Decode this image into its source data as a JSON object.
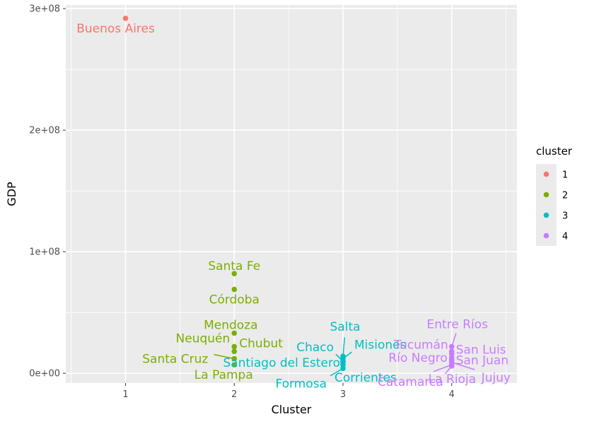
{
  "chart_data": {
    "type": "scatter",
    "xlabel": "Cluster",
    "ylabel": "GDP",
    "xlim": [
      0.45,
      4.6
    ],
    "ylim": [
      -8000000,
      303000000
    ],
    "x_ticks": [
      1,
      2,
      3,
      4
    ],
    "x_tick_labels": [
      "1",
      "2",
      "3",
      "4"
    ],
    "y_ticks": [
      0,
      100000000,
      200000000,
      300000000
    ],
    "y_tick_labels": [
      "0e+00",
      "1e+08",
      "2e+08",
      "3e+08"
    ],
    "grid": true,
    "legend": {
      "title": "cluster",
      "position": "right",
      "entries": [
        {
          "label": "1",
          "color": "#F8766D"
        },
        {
          "label": "2",
          "color": "#7CAE00"
        },
        {
          "label": "3",
          "color": "#00BFC4"
        },
        {
          "label": "4",
          "color": "#C77CFF"
        }
      ]
    },
    "series": [
      {
        "cluster": 1,
        "color": "#F8766D",
        "points": [
          {
            "label": "Buenos Aires",
            "x": 1,
            "y": 292000000
          }
        ]
      },
      {
        "cluster": 2,
        "color": "#7CAE00",
        "points": [
          {
            "label": "Santa Fe",
            "x": 2,
            "y": 82000000
          },
          {
            "label": "Córdoba",
            "x": 2,
            "y": 69000000
          },
          {
            "label": "Mendoza",
            "x": 2,
            "y": 33000000
          },
          {
            "label": "Neuquén",
            "x": 2,
            "y": 22000000
          },
          {
            "label": "Chubut",
            "x": 2,
            "y": 18000000
          },
          {
            "label": "Santa Cruz",
            "x": 2,
            "y": 12000000
          },
          {
            "label": "La Pampa",
            "x": 2,
            "y": 7000000
          }
        ]
      },
      {
        "cluster": 3,
        "color": "#00BFC4",
        "points": [
          {
            "label": "Salta",
            "x": 3,
            "y": 14000000
          },
          {
            "label": "Chaco",
            "x": 3,
            "y": 10000000
          },
          {
            "label": "Misiones",
            "x": 3,
            "y": 12000000
          },
          {
            "label": "Santiago del Estero",
            "x": 3,
            "y": 9000000
          },
          {
            "label": "Formosa",
            "x": 3,
            "y": 4000000
          },
          {
            "label": "Corrientes",
            "x": 3,
            "y": 7000000
          }
        ]
      },
      {
        "cluster": 4,
        "color": "#C77CFF",
        "points": [
          {
            "label": "Entre Ríos",
            "x": 4,
            "y": 22000000
          },
          {
            "label": "Tucumán",
            "x": 4,
            "y": 18000000
          },
          {
            "label": "San Luis",
            "x": 4,
            "y": 16000000
          },
          {
            "label": "Río Negro",
            "x": 4,
            "y": 13000000
          },
          {
            "label": "San Juan",
            "x": 4,
            "y": 11000000
          },
          {
            "label": "Catamarca",
            "x": 4,
            "y": 6000000
          },
          {
            "label": "La Rioja",
            "x": 4,
            "y": 7000000
          },
          {
            "label": "Jujuy",
            "x": 4,
            "y": 9000000
          }
        ]
      }
    ]
  }
}
